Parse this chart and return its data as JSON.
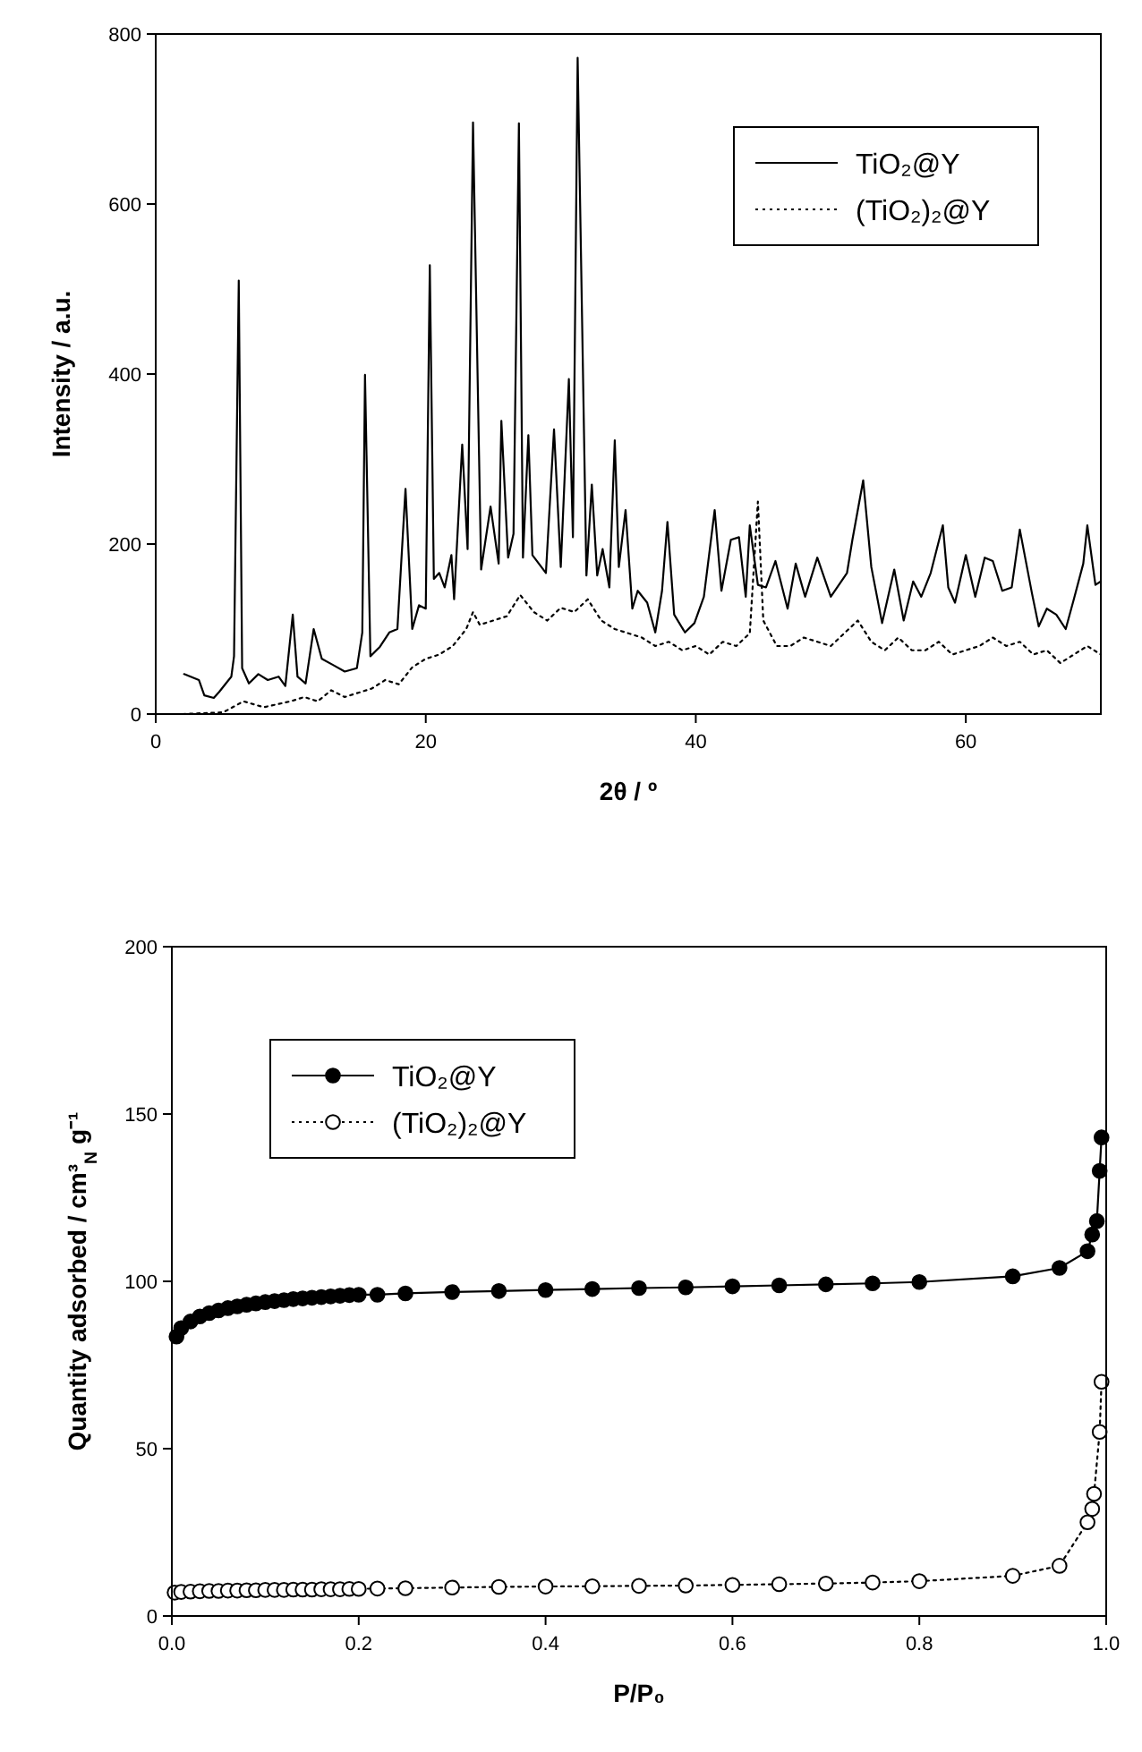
{
  "chart_data": [
    {
      "type": "line",
      "xlabel": "2θ / º",
      "ylabel": "Intensity / a.u.",
      "xlim": [
        0,
        70
      ],
      "xticks": [
        0,
        20,
        40,
        60
      ],
      "ylim": [
        0,
        800
      ],
      "yticks": [
        0,
        200,
        400,
        600,
        800
      ],
      "legend": "top right",
      "grid": false,
      "marker": "none",
      "series": [
        {
          "name": "TiO₂@Y",
          "color": "#000000",
          "line_style": "solid",
          "x": [
            2.1,
            3.2,
            3.6,
            4.3,
            4.7,
            5.2,
            5.6,
            5.8,
            6.15,
            6.4,
            6.9,
            7.6,
            8.3,
            9.1,
            9.6,
            10.15,
            10.5,
            11.1,
            11.7,
            12.3,
            13.1,
            14,
            14.9,
            15.3,
            15.5,
            15.9,
            16.6,
            17.3,
            17.9,
            18.5,
            19,
            19.5,
            20,
            20.3,
            20.6,
            21,
            21.4,
            21.9,
            22.1,
            22.7,
            23.1,
            23.5,
            24.1,
            24.8,
            25.4,
            25.6,
            26.1,
            26.5,
            26.9,
            27.2,
            27.6,
            27.9,
            28.9,
            29.5,
            30,
            30.6,
            30.9,
            31.25,
            31.9,
            32.3,
            32.7,
            33.1,
            33.6,
            34,
            34.3,
            34.8,
            35.3,
            35.7,
            36.4,
            37,
            37.5,
            37.9,
            38.4,
            39.2,
            39.9,
            40.6,
            41.4,
            41.9,
            42.6,
            43.2,
            43.7,
            44,
            44.6,
            45.2,
            45.9,
            46.8,
            47.4,
            48.1,
            49,
            50,
            51.2,
            51.6,
            52.4,
            53,
            53.8,
            54.7,
            55.4,
            56.1,
            56.7,
            57.4,
            58.3,
            58.7,
            59.2,
            60,
            60.7,
            61.4,
            62,
            62.7,
            63.4,
            64,
            64.9,
            65.4,
            66,
            66.7,
            67.4,
            68,
            68.7,
            69,
            69.6,
            70
          ],
          "values": [
            47,
            40,
            22,
            19,
            26,
            36,
            44,
            68,
            510,
            54,
            36,
            47,
            40,
            44,
            33,
            117,
            44,
            36,
            100,
            65,
            58,
            50,
            54,
            96,
            399,
            68,
            79,
            96,
            100,
            265,
            100,
            128,
            124,
            528,
            159,
            166,
            149,
            187,
            135,
            317,
            194,
            696,
            170,
            244,
            177,
            345,
            184,
            212,
            695,
            184,
            328,
            187,
            166,
            335,
            173,
            394,
            208,
            772,
            163,
            270,
            163,
            194,
            149,
            322,
            173,
            240,
            124,
            145,
            131,
            96,
            145,
            226,
            117,
            96,
            107,
            138,
            240,
            145,
            205,
            208,
            138,
            222,
            152,
            149,
            180,
            124,
            177,
            138,
            184,
            138,
            166,
            205,
            275,
            173,
            107,
            170,
            110,
            156,
            138,
            166,
            222,
            149,
            131,
            187,
            138,
            184,
            180,
            145,
            149,
            217,
            142,
            103,
            124,
            117,
            100,
            135,
            177,
            222,
            152,
            156
          ]
        },
        {
          "name": "(TiO₂)₂@Y",
          "color": "#000000",
          "line_style": "dotted",
          "x": [
            2,
            5,
            6.5,
            8,
            10,
            11,
            12,
            13,
            14,
            15,
            16,
            17,
            18,
            19,
            20,
            21,
            22,
            23,
            23.5,
            24,
            25,
            26,
            27,
            28,
            29,
            30,
            31,
            32,
            33,
            34,
            35,
            36,
            37,
            38,
            39,
            40,
            41,
            42,
            43,
            44,
            44.6,
            45,
            46,
            47,
            48,
            49,
            50,
            51,
            52,
            53,
            54,
            55,
            56,
            57,
            58,
            59,
            60,
            61,
            62,
            63,
            64,
            65,
            66,
            67,
            68,
            69,
            70
          ],
          "values": [
            0,
            2,
            15,
            8,
            15,
            20,
            15,
            28,
            20,
            25,
            30,
            40,
            35,
            55,
            65,
            70,
            80,
            100,
            120,
            105,
            110,
            115,
            140,
            120,
            110,
            125,
            120,
            135,
            110,
            100,
            95,
            90,
            80,
            85,
            75,
            80,
            70,
            85,
            80,
            95,
            250,
            110,
            80,
            80,
            90,
            85,
            80,
            95,
            110,
            85,
            75,
            90,
            75,
            75,
            85,
            70,
            75,
            80,
            90,
            80,
            85,
            70,
            75,
            60,
            70,
            80,
            70
          ]
        }
      ]
    },
    {
      "type": "line",
      "xlabel": "P/P₀",
      "ylabel": "Quantity adsorbed / cm³$_{N}$ g⁻¹",
      "xlim": [
        0,
        1
      ],
      "xticks": [
        {
          "value": 0,
          "label": "0.0"
        },
        0.2,
        0.4,
        0.6,
        0.8,
        {
          "value": 1,
          "label": "1.0"
        }
      ],
      "ylim": [
        0,
        200
      ],
      "yticks": [
        0,
        50,
        100,
        150,
        200
      ],
      "legend": "top left",
      "grid": false,
      "marker": "circle",
      "series": [
        {
          "name": "TiO₂@Y",
          "color": "#000000",
          "line_style": "solid",
          "x": [
            0.005,
            0.01,
            0.02,
            0.03,
            0.04,
            0.05,
            0.06,
            0.07,
            0.08,
            0.09,
            0.1,
            0.11,
            0.12,
            0.13,
            0.14,
            0.15,
            0.16,
            0.17,
            0.18,
            0.19,
            0.2,
            0.22,
            0.25,
            0.3,
            0.35,
            0.4,
            0.45,
            0.5,
            0.55,
            0.6,
            0.65,
            0.7,
            0.75,
            0.8,
            0.9,
            0.95,
            0.98,
            0.985,
            0.99,
            0.993,
            0.995
          ],
          "values": [
            83.5,
            86,
            88,
            89.5,
            90.5,
            91.3,
            92,
            92.5,
            93,
            93.4,
            93.8,
            94.1,
            94.4,
            94.7,
            94.9,
            95.1,
            95.3,
            95.5,
            95.7,
            95.9,
            96,
            96,
            96.4,
            96.8,
            97.1,
            97.4,
            97.7,
            98,
            98.2,
            98.5,
            98.8,
            99.1,
            99.4,
            99.8,
            101.5,
            104,
            109,
            114,
            118,
            133,
            143
          ]
        },
        {
          "name": "(TiO₂)₂@Y",
          "color": "#000000",
          "line_style": "dotted",
          "x": [
            0.003,
            0.01,
            0.02,
            0.03,
            0.04,
            0.05,
            0.06,
            0.07,
            0.08,
            0.09,
            0.1,
            0.11,
            0.12,
            0.13,
            0.14,
            0.15,
            0.16,
            0.17,
            0.18,
            0.19,
            0.2,
            0.22,
            0.25,
            0.3,
            0.35,
            0.4,
            0.45,
            0.5,
            0.55,
            0.6,
            0.65,
            0.7,
            0.75,
            0.8,
            0.9,
            0.95,
            0.98,
            0.985,
            0.987,
            0.993,
            0.995
          ],
          "values": [
            7,
            7.2,
            7.3,
            7.4,
            7.5,
            7.5,
            7.6,
            7.6,
            7.7,
            7.7,
            7.8,
            7.8,
            7.8,
            7.9,
            7.9,
            7.9,
            8,
            8,
            8,
            8.1,
            8.1,
            8.2,
            8.3,
            8.5,
            8.7,
            8.8,
            8.9,
            9,
            9.1,
            9.3,
            9.5,
            9.7,
            10,
            10.4,
            12,
            15,
            28,
            32,
            36.5,
            55,
            70
          ]
        }
      ]
    }
  ]
}
